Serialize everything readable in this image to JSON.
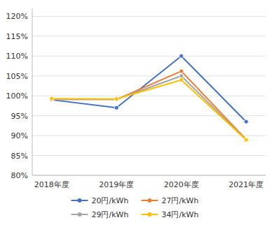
{
  "chart_data": {
    "type": "line",
    "categories": [
      "2018年度",
      "2019年度",
      "2020年度",
      "2021年度"
    ],
    "series": [
      {
        "name": "20円/kWh",
        "color": "#4472C4",
        "values": [
          0.99,
          0.97,
          1.1,
          0.935
        ]
      },
      {
        "name": "27円/kWh",
        "color": "#ED7D31",
        "values": [
          0.991,
          0.991,
          1.062,
          0.89
        ]
      },
      {
        "name": "29円/kWh",
        "color": "#A5A5A5",
        "values": [
          0.991,
          0.991,
          1.05,
          0.889
        ]
      },
      {
        "name": "34円/kWh",
        "color": "#FFC000",
        "values": [
          0.993,
          0.992,
          1.04,
          0.889
        ]
      }
    ],
    "ylim": [
      0.8,
      1.22
    ],
    "yticks": [
      {
        "value": 0.8,
        "label": "80%"
      },
      {
        "value": 0.85,
        "label": "85%"
      },
      {
        "value": 0.9,
        "label": "90%"
      },
      {
        "value": 0.95,
        "label": "95%"
      },
      {
        "value": 1.0,
        "label": "100%"
      },
      {
        "value": 1.05,
        "label": "105%"
      },
      {
        "value": 1.1,
        "label": "110%"
      },
      {
        "value": 1.15,
        "label": "115%"
      },
      {
        "value": 1.2,
        "label": "120%"
      }
    ],
    "grid": true,
    "marker": "circle",
    "legend": "bottom"
  }
}
